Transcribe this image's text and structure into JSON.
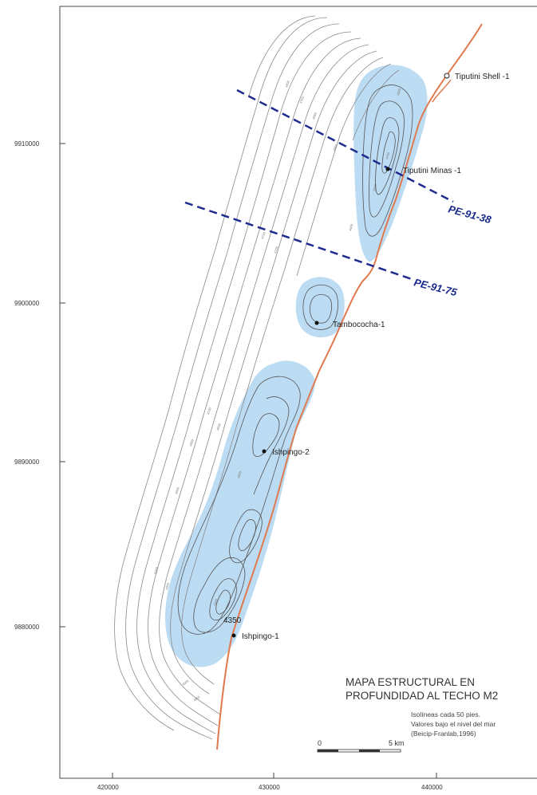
{
  "map": {
    "y_ticks": [
      "9910000",
      "9900000",
      "9890000",
      "9880000"
    ],
    "x_ticks": [
      "420000",
      "430000",
      "440000"
    ],
    "wells": [
      {
        "name": "Tiputini Shell -1",
        "symbol": "open-circle"
      },
      {
        "name": "Tiputini Minas -1",
        "symbol": "dot"
      },
      {
        "name": "Tambococha-1",
        "symbol": "dot"
      },
      {
        "name": "Ishpingo-2",
        "symbol": "dot"
      },
      {
        "name": "Ishpingo-1",
        "symbol": "dot"
      }
    ],
    "depth_label": "4350",
    "sections": [
      "PE-91-38",
      "PE-91-75"
    ],
    "title_line1": "MAPA ESTRUCTURAL EN",
    "title_line2": "PROFUNDIDAD AL TECHO M2",
    "note_line1": "Isolíneas cada 50 pies.",
    "note_line2": "Valores bajo el nivel del mar",
    "note_line3": "(Beicip-Franlab,1996)",
    "scale_start": "0",
    "scale_end": "5 km",
    "colors": {
      "fault": "#e07a4e",
      "section_line": "#1f2b8f",
      "highlight_fill": "#bcdcf3",
      "contour": "#8a8a8a"
    }
  }
}
